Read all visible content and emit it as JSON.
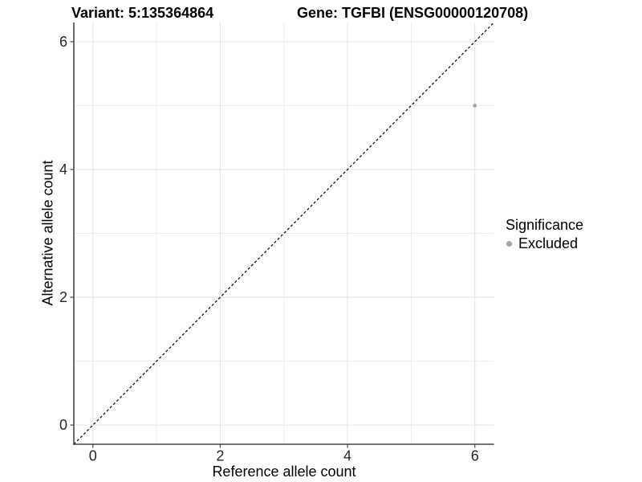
{
  "header": {
    "title_left": "Variant: 5:135364864",
    "title_right": "Gene: TGFBI (ENSG00000120708)"
  },
  "chart_data": {
    "type": "scatter",
    "title_left": "Variant: 5:135364864",
    "title_right": "Gene: TGFBI (ENSG00000120708)",
    "xlabel": "Reference allele count",
    "ylabel": "Alternative allele count",
    "xlim": [
      -0.3,
      6.3
    ],
    "ylim": [
      -0.3,
      6.3
    ],
    "x_ticks": [
      0,
      2,
      4,
      6
    ],
    "y_ticks": [
      0,
      2,
      4,
      6
    ],
    "x_minor_ticks": [
      1,
      3,
      5
    ],
    "y_minor_ticks": [
      1,
      3,
      5
    ],
    "grid": true,
    "identity_line": {
      "style": "dashed",
      "x1": -0.3,
      "y1": -0.3,
      "x2": 6.3,
      "y2": 6.3,
      "color": "#000000"
    },
    "series": [
      {
        "name": "Excluded",
        "color": "#a5a5a5",
        "points": [
          {
            "x": 6,
            "y": 5
          }
        ]
      }
    ],
    "legend": {
      "title": "Significance",
      "position": "right",
      "items": [
        {
          "label": "Excluded",
          "color": "#a5a5a5"
        }
      ]
    }
  },
  "colors": {
    "background": "#ffffff",
    "grid_major": "#e3e3e3",
    "grid_minor": "#ebebeb",
    "axis_line": "#474747",
    "tick_mark": "#474747",
    "tick_label": "#262626",
    "point": "#a5a5a5",
    "identity_line": "#000000"
  }
}
